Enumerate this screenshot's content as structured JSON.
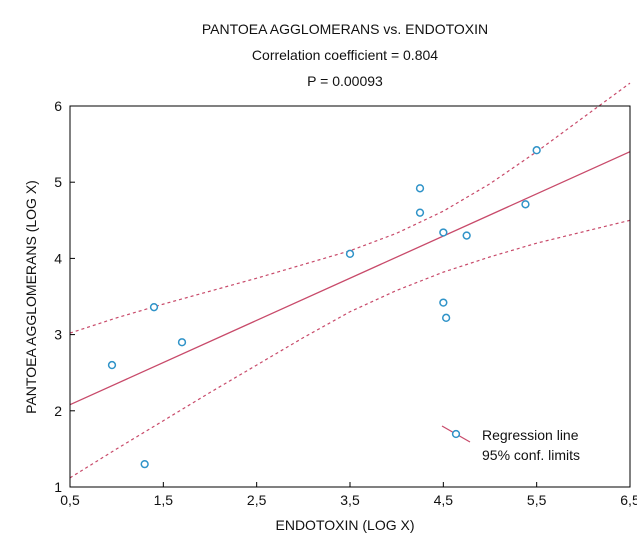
{
  "chart_data": {
    "type": "scatter",
    "title": "PANTOEA AGGLOMERANS vs. ENDOTOXIN",
    "subtitle_lines": [
      "Correlation coefficient = 0.804",
      "P = 0.00093"
    ],
    "xlabel": "ENDOTOXIN (LOG X)",
    "ylabel": "PANTOEA AGGLOMERANS (LOG X)",
    "xlim": [
      0.5,
      6.5
    ],
    "ylim": [
      1,
      6
    ],
    "x_ticks": [
      0.5,
      1.5,
      2.5,
      3.5,
      4.5,
      5.5,
      6.5
    ],
    "x_tick_labels": [
      "0,5",
      "1,5",
      "2,5",
      "3,5",
      "4,5",
      "5,5",
      "6,5"
    ],
    "y_ticks": [
      1,
      2,
      3,
      4,
      5,
      6
    ],
    "y_tick_labels": [
      "1",
      "2",
      "3",
      "4",
      "5",
      "6"
    ],
    "grid": false,
    "points": [
      {
        "x": 0.95,
        "y": 2.6
      },
      {
        "x": 1.3,
        "y": 1.3
      },
      {
        "x": 1.4,
        "y": 3.36
      },
      {
        "x": 1.7,
        "y": 2.9
      },
      {
        "x": 3.5,
        "y": 4.06
      },
      {
        "x": 4.25,
        "y": 4.92
      },
      {
        "x": 4.25,
        "y": 4.6
      },
      {
        "x": 4.5,
        "y": 4.34
      },
      {
        "x": 4.5,
        "y": 3.42
      },
      {
        "x": 4.53,
        "y": 3.22
      },
      {
        "x": 4.75,
        "y": 4.3
      },
      {
        "x": 5.38,
        "y": 4.71
      },
      {
        "x": 5.5,
        "y": 5.42
      }
    ],
    "regression": {
      "x": [
        0.5,
        6.5
      ],
      "y": [
        2.08,
        5.4
      ]
    },
    "conf_upper": {
      "x": [
        0.5,
        1.0,
        1.5,
        2.0,
        2.5,
        3.0,
        3.5,
        4.0,
        4.5,
        5.0,
        5.5,
        6.0,
        6.5
      ],
      "y": [
        3.02,
        3.22,
        3.4,
        3.57,
        3.74,
        3.92,
        4.1,
        4.33,
        4.62,
        4.98,
        5.4,
        5.85,
        6.3
      ]
    },
    "conf_lower": {
      "x": [
        0.5,
        1.0,
        1.5,
        2.0,
        2.5,
        3.0,
        3.5,
        4.0,
        4.5,
        5.0,
        5.5,
        6.0,
        6.5
      ],
      "y": [
        1.12,
        1.5,
        1.87,
        2.24,
        2.6,
        2.96,
        3.3,
        3.58,
        3.82,
        4.02,
        4.2,
        4.35,
        4.5
      ]
    },
    "legend": {
      "position": "bottom-right",
      "entries": [
        "Regression line",
        "95% conf. limits"
      ]
    },
    "colors": {
      "points": "#2f93c8",
      "regression": "#c84a6a",
      "conf": "#c84a6a",
      "frame": "#000000"
    }
  }
}
